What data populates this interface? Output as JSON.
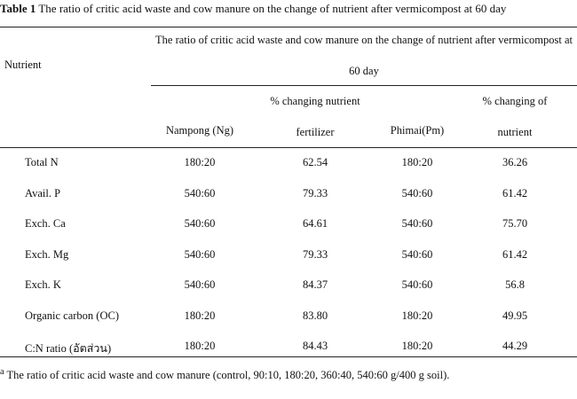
{
  "title": {
    "label": "Table 1",
    "text": "The ratio of critic acid waste and cow manure on the change of nutrient after vermicompost at 60 day"
  },
  "table": {
    "row_header": "Nutrient",
    "span_header": "The ratio of critic acid waste and cow manure on the change of nutrient after vermicompost at 60 day",
    "columns": [
      "Nampong (Ng)",
      "% changing nutrient fertilizer",
      "Phimai(Pm)",
      "% changing of nutrient"
    ],
    "rows": [
      [
        "Total N",
        "180:20",
        "62.54",
        "180:20",
        "36.26"
      ],
      [
        "Avail. P",
        "540:60",
        "79.33",
        "540:60",
        "61.42"
      ],
      [
        "Exch. Ca",
        "540:60",
        "64.61",
        "540:60",
        "75.70"
      ],
      [
        "Exch. Mg",
        "540:60",
        "79.33",
        "540:60",
        "61.42"
      ],
      [
        "Exch. K",
        "540:60",
        "84.37",
        "540:60",
        "56.8"
      ],
      [
        "Organic carbon (OC)",
        "180:20",
        "83.80",
        "180:20",
        "49.95"
      ],
      [
        "C:N ratio (อัตส่วน)",
        "180:20",
        "84.43",
        "180:20",
        "44.29"
      ]
    ]
  },
  "footnote": {
    "marker": "a",
    "text": "The ratio of critic acid waste and cow manure (control, 90:10, 180:20, 360:40, 540:60 g/400 g soil)."
  }
}
